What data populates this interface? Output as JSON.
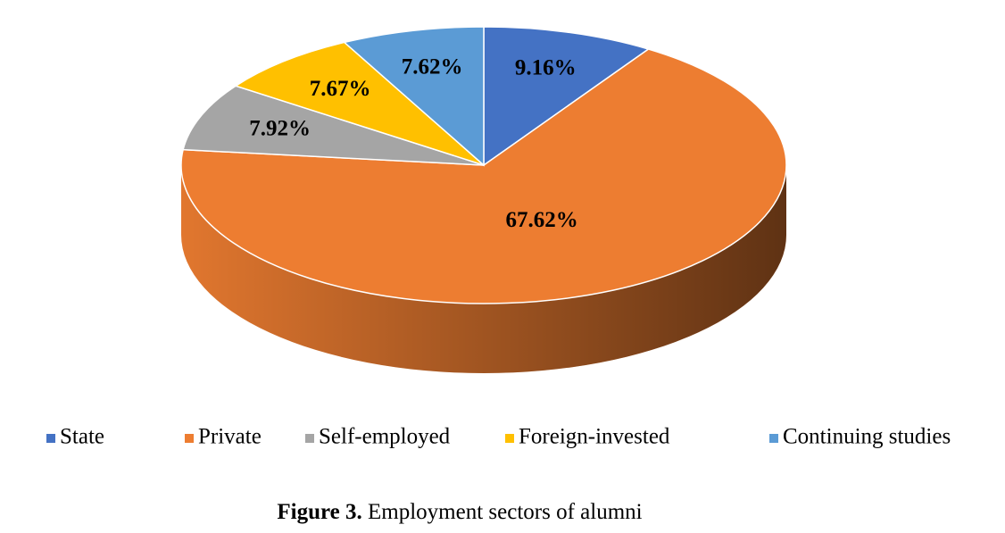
{
  "chart_data": {
    "type": "pie",
    "caption_label": "Figure 3.",
    "title": "Employment sectors of alumni",
    "categories": [
      "State",
      "Private",
      "Self-employed",
      "Foreign-invested",
      "Continuing studies"
    ],
    "values": [
      9.16,
      67.62,
      7.92,
      7.67,
      7.62
    ],
    "value_labels": [
      "9.16%",
      "67.62%",
      "7.92%",
      "7.67%",
      "7.62%"
    ],
    "colors": [
      "#4472c4",
      "#ed7d31",
      "#a5a5a5",
      "#ffc000",
      "#5b9bd5"
    ],
    "legend": "bottom"
  }
}
